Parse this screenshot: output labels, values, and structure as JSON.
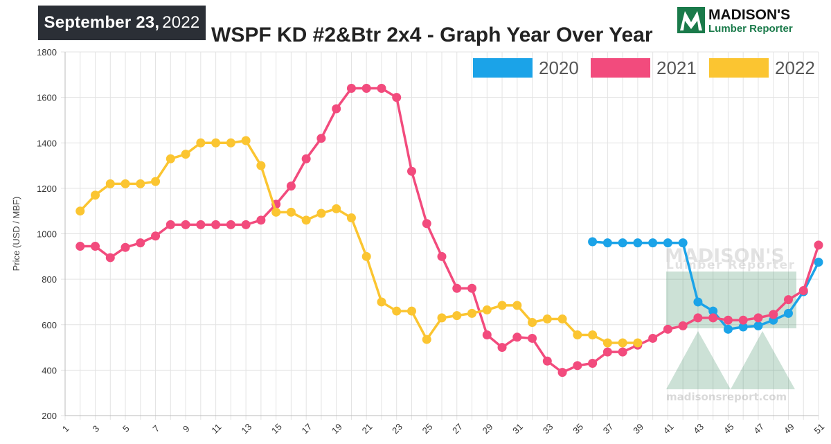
{
  "header": {
    "date_bold": "September 23,",
    "date_year": "2022",
    "title": "WSPF KD #2&Btr 2x4 - Graph Year Over Year"
  },
  "brand": {
    "name_line1": "MADISON'S",
    "name_line2": "Lumber Reporter",
    "website": "madisonsreport.com",
    "color": "#1a7a4a"
  },
  "chart_data": {
    "type": "line",
    "title": "WSPF KD #2&Btr 2x4 - Graph Year Over Year",
    "xlabel": "",
    "ylabel": "Price (USD / MBF)",
    "xlim": [
      1,
      51
    ],
    "ylim": [
      200,
      1800
    ],
    "x_ticks": [
      1,
      3,
      5,
      7,
      9,
      11,
      13,
      15,
      17,
      19,
      21,
      23,
      25,
      27,
      29,
      31,
      33,
      35,
      37,
      39,
      41,
      43,
      45,
      47,
      49,
      51
    ],
    "y_ticks": [
      200,
      400,
      600,
      800,
      1000,
      1200,
      1400,
      1600,
      1800
    ],
    "grid": true,
    "legend_position": "top-right",
    "series": [
      {
        "name": "2020",
        "color": "#1ba3e8",
        "x": [
          36,
          37,
          38,
          39,
          40,
          41,
          42,
          43,
          44,
          45,
          46,
          47,
          48,
          49,
          50,
          51
        ],
        "values": [
          965,
          960,
          960,
          960,
          960,
          960,
          960,
          700,
          660,
          580,
          590,
          595,
          620,
          650,
          745,
          875
        ]
      },
      {
        "name": "2021",
        "color": "#f24b7d",
        "x": [
          2,
          3,
          4,
          5,
          6,
          7,
          8,
          9,
          10,
          11,
          12,
          13,
          14,
          15,
          16,
          17,
          18,
          19,
          20,
          21,
          22,
          23,
          24,
          25,
          26,
          27,
          28,
          29,
          30,
          31,
          32,
          33,
          34,
          35,
          36,
          37,
          38,
          39,
          40,
          41,
          42,
          43,
          44,
          45,
          46,
          47,
          48,
          49,
          50,
          51
        ],
        "values": [
          945,
          945,
          895,
          940,
          960,
          990,
          1040,
          1040,
          1040,
          1040,
          1040,
          1040,
          1060,
          1130,
          1210,
          1330,
          1420,
          1550,
          1640,
          1640,
          1640,
          1600,
          1275,
          1045,
          900,
          760,
          760,
          555,
          500,
          545,
          540,
          440,
          390,
          420,
          430,
          480,
          480,
          510,
          540,
          580,
          595,
          630,
          630,
          620,
          620,
          630,
          645,
          710,
          750,
          950
        ]
      },
      {
        "name": "2022",
        "color": "#fbc531",
        "x": [
          2,
          3,
          4,
          5,
          6,
          7,
          8,
          9,
          10,
          11,
          12,
          13,
          14,
          15,
          16,
          17,
          18,
          19,
          20,
          21,
          22,
          23,
          24,
          25,
          26,
          27,
          28,
          29,
          30,
          31,
          32,
          33,
          34,
          35,
          36,
          37,
          38,
          39
        ],
        "values": [
          1100,
          1170,
          1220,
          1220,
          1220,
          1230,
          1330,
          1350,
          1400,
          1400,
          1400,
          1410,
          1300,
          1095,
          1095,
          1060,
          1090,
          1110,
          1070,
          900,
          700,
          660,
          660,
          535,
          630,
          640,
          650,
          665,
          685,
          685,
          610,
          625,
          625,
          555,
          555,
          520,
          520,
          520
        ]
      }
    ]
  }
}
